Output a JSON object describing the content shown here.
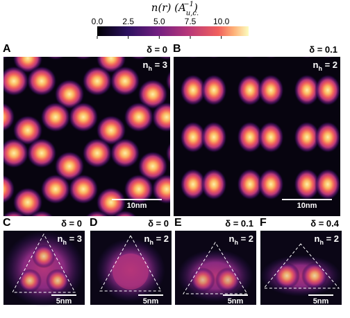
{
  "colorbar": {
    "title": {
      "main": "n(r) (A",
      "sup": "−1",
      "sub": "u,c.",
      "end": ")"
    },
    "range": [
      0,
      12.2
    ],
    "ticks": [
      {
        "value": 0,
        "label": "0.0"
      },
      2.5,
      {
        "value": 5,
        "label": "5.0"
      },
      7.5,
      {
        "value": 10,
        "label": "10.0"
      }
    ]
  },
  "panels": [
    {
      "label": "A",
      "delta": "δ = 0",
      "nh": {
        "symbol": "n",
        "sub": "h",
        "rest": " = 3"
      },
      "scale": "10nm"
    },
    {
      "label": "B",
      "delta": "δ = 0.1",
      "nh": {
        "symbol": "n",
        "sub": "h",
        "rest": " = 2"
      },
      "scale": "10nm"
    },
    {
      "label": "C",
      "delta": "δ = 0",
      "nh": {
        "symbol": "n",
        "sub": "h",
        "rest": " = 3"
      },
      "scale": "5nm"
    },
    {
      "label": "D",
      "delta": "δ = 0",
      "nh": {
        "symbol": "n",
        "sub": "h",
        "rest": " = 2"
      },
      "scale": "5nm"
    },
    {
      "label": "E",
      "delta": "δ = 0.1",
      "nh": {
        "symbol": "n",
        "sub": "h",
        "rest": " = 2"
      },
      "scale": "5nm"
    },
    {
      "label": "F",
      "delta": "δ = 0.4",
      "nh": {
        "symbol": "n",
        "sub": "h",
        "rest": " = 2"
      },
      "scale": "5nm"
    }
  ]
}
